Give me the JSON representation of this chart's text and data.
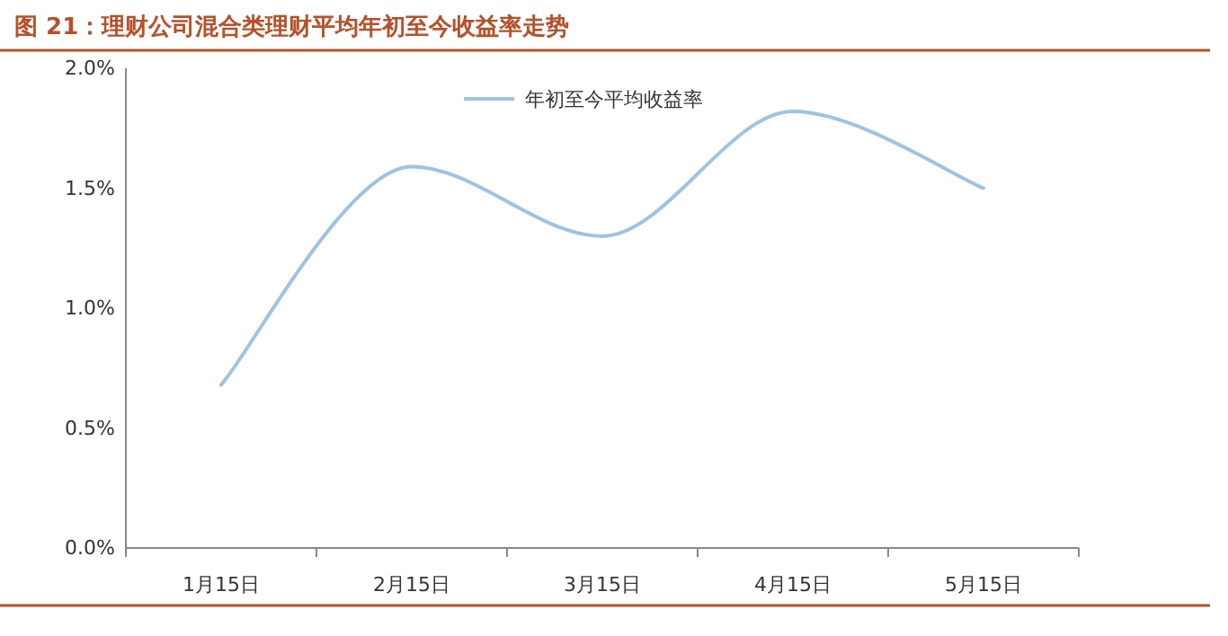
{
  "chart_data": {
    "type": "line",
    "title": "图 21：理财公司混合类理财平均年初至今收益率走势",
    "categories": [
      "1月15日",
      "2月15日",
      "3月15日",
      "4月15日",
      "5月15日"
    ],
    "series": [
      {
        "name": "年初至今平均收益率",
        "color": "#9dc3e6",
        "values": [
          0.68,
          1.59,
          1.3,
          1.82,
          1.5
        ]
      }
    ],
    "ylim": [
      0,
      2
    ],
    "yticks": [
      {
        "value": 0,
        "label": "0.0%"
      },
      {
        "value": 0.5,
        "label": "0.5%"
      },
      {
        "value": 1,
        "label": "1.0%"
      },
      {
        "value": 1.5,
        "label": "1.5%"
      },
      {
        "value": 2,
        "label": "2.0%"
      }
    ],
    "legend": "top",
    "line_style": "solid",
    "marker": "none"
  }
}
